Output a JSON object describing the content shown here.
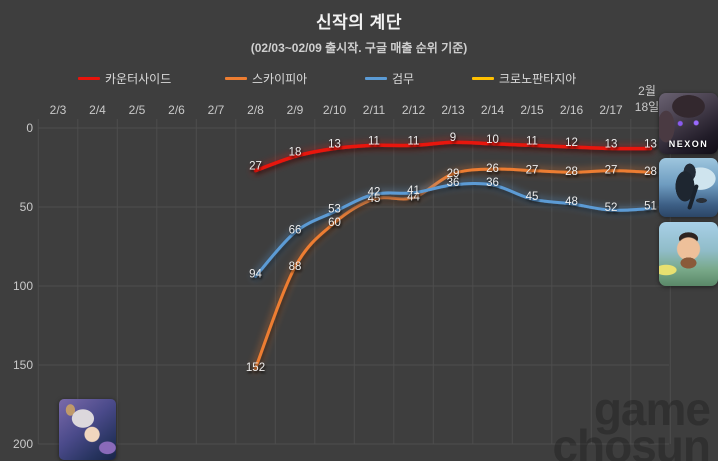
{
  "title": "신작의 계단",
  "subtitle": "(02/03~02/09 출시작. 구글 매출 순위 기준)",
  "colors": {
    "background": "#3e3e3e",
    "grid": "#4d4d4d",
    "axis_text": "#c9c9c9",
    "data_label_text": "#ededed",
    "title_text": "#f2f2f2",
    "red": "#e8130b",
    "orange": "#ed7d31",
    "blue": "#5b9bd5",
    "yellow": "#ffc000"
  },
  "legend": [
    {
      "label": "카운터사이드",
      "color": "#e8130b"
    },
    {
      "label": "스카이피아",
      "color": "#ed7d31"
    },
    {
      "label": "검무",
      "color": "#5b9bd5"
    },
    {
      "label": "크로노판타지아",
      "color": "#ffc000"
    }
  ],
  "chart_data": {
    "type": "line",
    "title": "신작의 계단",
    "subtitle": "(02/03~02/09 출시작. 구글 매출 순위 기준)",
    "xlabel": "",
    "ylabel": "",
    "categories": [
      "2/3",
      "2/4",
      "2/5",
      "2/6",
      "2/7",
      "2/8",
      "2/9",
      "2/10",
      "2/11",
      "2/12",
      "2/13",
      "2/14",
      "2/15",
      "2/16",
      "2/17",
      "2월 18일"
    ],
    "y_ticks": [
      0,
      50,
      100,
      150,
      200
    ],
    "ylim": [
      0,
      200
    ],
    "y_axis_inverted": true,
    "grid": true,
    "legend_position": "top",
    "series": [
      {
        "name": "카운터사이드",
        "color": "#e8130b",
        "start_index": 5,
        "values": [
          27,
          18,
          13,
          11,
          11,
          9,
          10,
          11,
          12,
          13,
          13
        ]
      },
      {
        "name": "스카이피아",
        "color": "#ed7d31",
        "start_index": 5,
        "values": [
          152,
          88,
          60,
          45,
          44,
          29,
          26,
          27,
          28,
          27,
          28
        ]
      },
      {
        "name": "검무",
        "color": "#5b9bd5",
        "start_index": 5,
        "values": [
          94,
          66,
          53,
          42,
          41,
          36,
          36,
          45,
          48,
          52,
          51
        ]
      },
      {
        "name": "크로노판타지아",
        "color": "#ffc000",
        "start_index": 5,
        "values": []
      }
    ]
  },
  "app_icons": {
    "counterside_caption": "NEXON"
  },
  "watermark": {
    "line1": "game",
    "line2": "chosun"
  }
}
